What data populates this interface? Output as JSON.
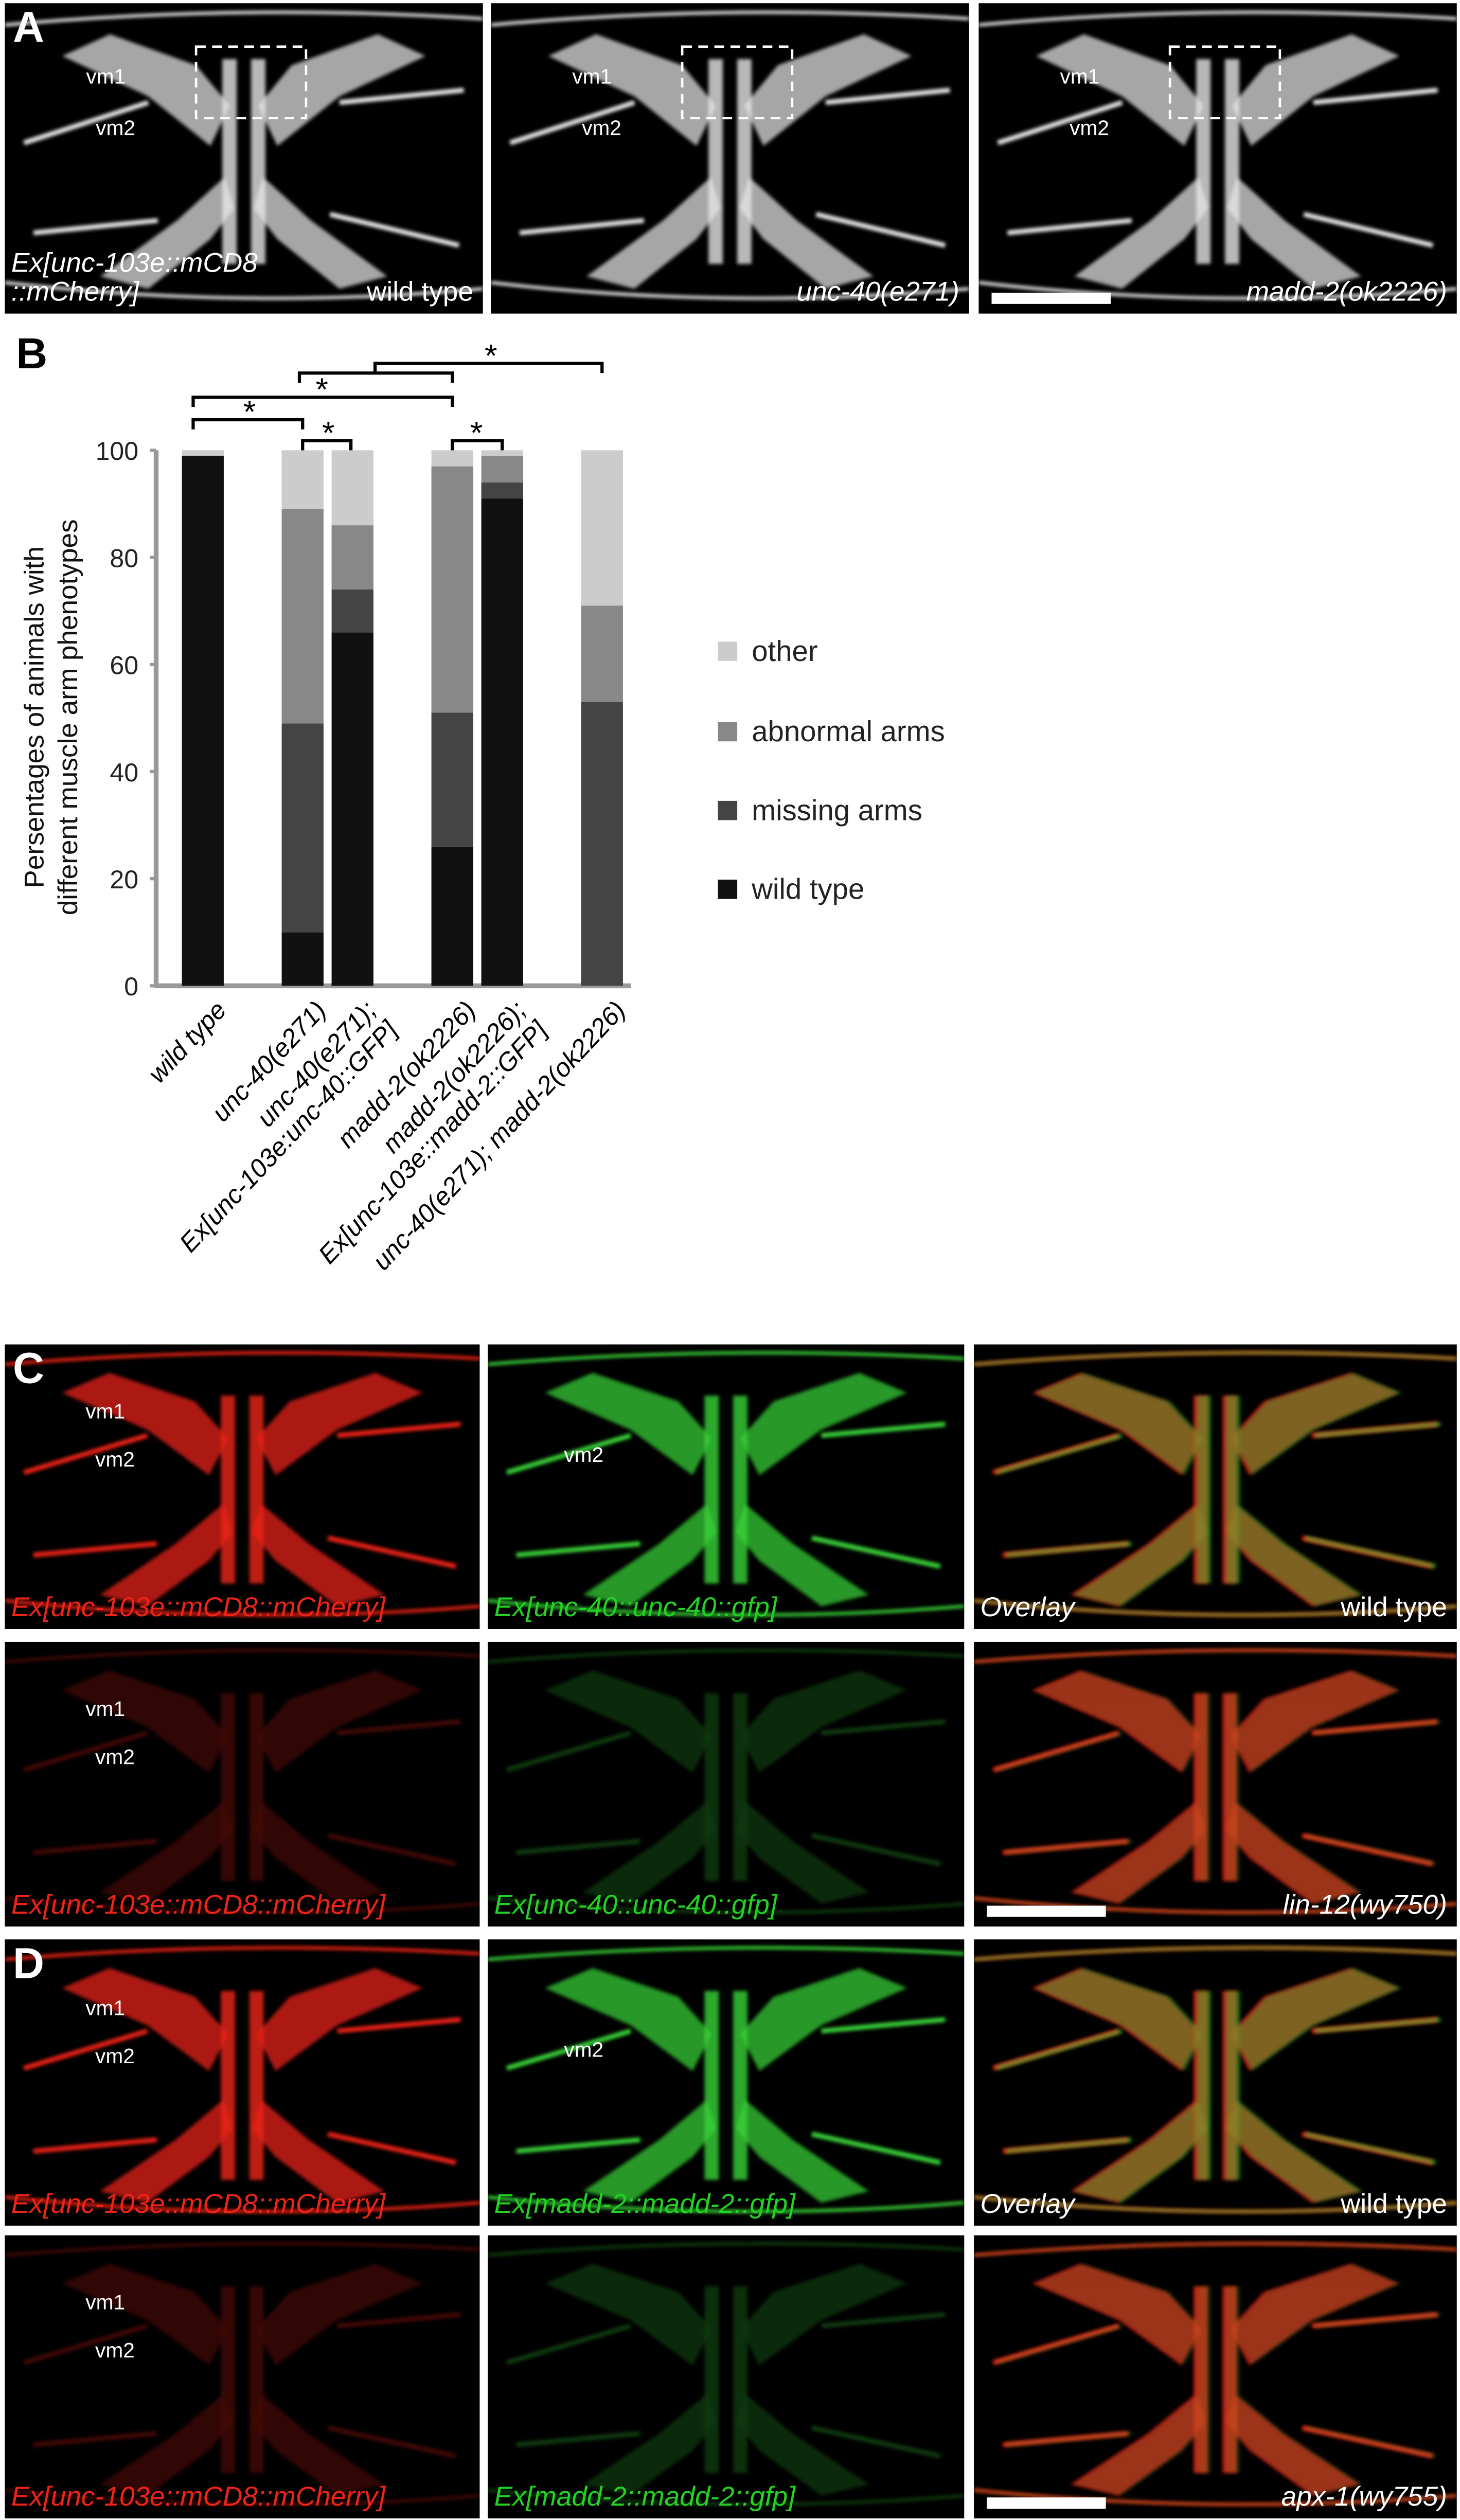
{
  "panel_letters": [
    "A",
    "B",
    "C",
    "D"
  ],
  "panel_A": {
    "images": [
      {
        "channel": "gray",
        "labels": [
          "vm1",
          "vm2"
        ],
        "caption": "Ex[unc-103e::mCD8\n::mCherry]",
        "genotype": "wild type"
      },
      {
        "channel": "gray",
        "labels": [
          "vm1",
          "vm2"
        ],
        "genotype": "unc-40(e271)"
      },
      {
        "channel": "gray",
        "labels": [
          "vm1",
          "vm2"
        ],
        "genotype": "madd-2(ok2226)",
        "scale_bar": true
      }
    ]
  },
  "panel_C": {
    "rows": [
      {
        "images": [
          {
            "channel": "red",
            "labels": [
              "vm1",
              "vm2"
            ],
            "caption": "Ex[unc-103e::mCD8::mCherry]"
          },
          {
            "channel": "green",
            "labels": [
              "vm2"
            ],
            "caption": "Ex[unc-40::unc-40::gfp]"
          },
          {
            "channel": "overlay",
            "caption": "Overlay",
            "genotype": "wild type"
          }
        ]
      },
      {
        "images": [
          {
            "channel": "red",
            "labels": [
              "vm1",
              "vm2"
            ],
            "caption": "Ex[unc-103e::mCD8::mCherry]"
          },
          {
            "channel": "green",
            "caption": "Ex[unc-40::unc-40::gfp]"
          },
          {
            "channel": "overlay",
            "genotype": "lin-12(wy750)",
            "scale_bar": true
          }
        ]
      }
    ]
  },
  "panel_D": {
    "rows": [
      {
        "images": [
          {
            "channel": "red",
            "labels": [
              "vm1",
              "vm2"
            ],
            "caption": "Ex[unc-103e::mCD8::mCherry]"
          },
          {
            "channel": "green",
            "labels": [
              "vm2"
            ],
            "caption": "Ex[madd-2::madd-2::gfp]"
          },
          {
            "channel": "overlay",
            "caption": "Overlay",
            "genotype": "wild type"
          }
        ]
      },
      {
        "images": [
          {
            "channel": "red",
            "labels": [
              "vm1",
              "vm2"
            ],
            "caption": "Ex[unc-103e::mCD8::mCherry]"
          },
          {
            "channel": "green",
            "caption": "Ex[madd-2::madd-2::gfp]"
          },
          {
            "channel": "overlay",
            "genotype": "apx-1(wy755)",
            "scale_bar": true
          }
        ]
      }
    ]
  },
  "chart_data": {
    "type": "stacked_bar",
    "y_label": [
      "Persentages of animals with",
      "different muscle arm phenotypes"
    ],
    "categories": [
      "wild type",
      "unc-40(e271)",
      "unc-40(e271);\nEx[unc-103e:unc-40::GFP]",
      "madd-2(ok2226)",
      "madd-2(ok2226);\nEx[unc-103e::madd-2::GFP]",
      "unc-40(e271); madd-2(ok2226)"
    ],
    "series": [
      {
        "name": "wild type",
        "color": "#111111",
        "values": [
          99,
          10,
          66,
          26,
          91,
          0
        ]
      },
      {
        "name": "missing arms",
        "color": "#444444",
        "values": [
          0,
          39,
          8,
          25,
          3,
          53
        ]
      },
      {
        "name": "abnormal arms",
        "color": "#888888",
        "values": [
          0,
          40,
          12,
          46,
          5,
          18
        ]
      },
      {
        "name": "other",
        "color": "#cccccc",
        "values": [
          1,
          11,
          14,
          3,
          1,
          29
        ]
      }
    ],
    "ylim": [
      0,
      100
    ],
    "yticks": [
      0,
      20,
      40,
      60,
      80,
      100
    ],
    "significance": [
      "*",
      "*",
      "*",
      "*",
      "*"
    ]
  }
}
